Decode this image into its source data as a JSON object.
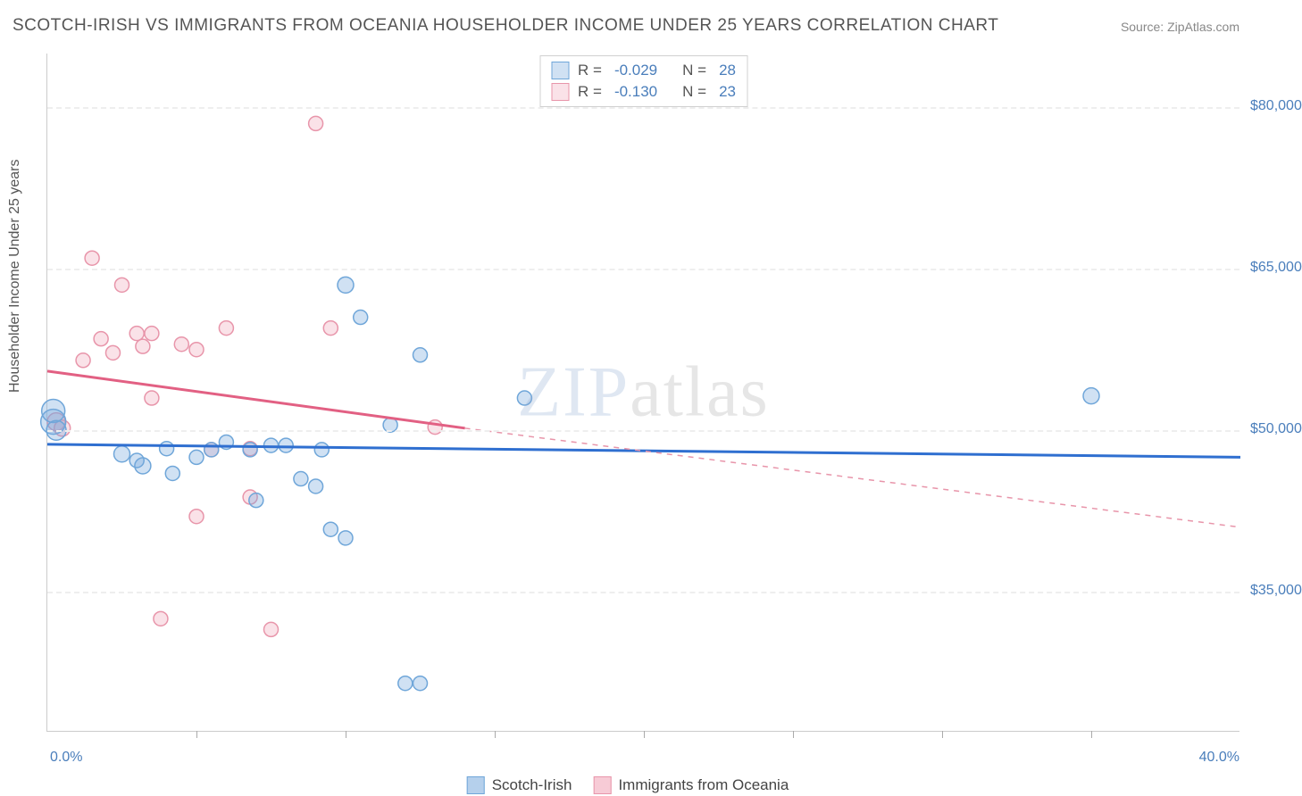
{
  "title": "SCOTCH-IRISH VS IMMIGRANTS FROM OCEANIA HOUSEHOLDER INCOME UNDER 25 YEARS CORRELATION CHART",
  "source": "Source: ZipAtlas.com",
  "ylabel": "Householder Income Under 25 years",
  "watermark_a": "ZIP",
  "watermark_b": "atlas",
  "chart": {
    "type": "scatter",
    "background_color": "#ffffff",
    "grid_color": "#eeeeee",
    "axis_color": "#cccccc",
    "tick_text_color": "#4a7ebb",
    "xlim": [
      0,
      40
    ],
    "ylim": [
      22000,
      85000
    ],
    "xticks_label": {
      "min": "0.0%",
      "max": "40.0%"
    },
    "xtick_positions_pct": [
      12.5,
      25,
      37.5,
      50,
      62.5,
      75,
      87.5
    ],
    "yticks": [
      {
        "value": 80000,
        "label": "$80,000"
      },
      {
        "value": 65000,
        "label": "$65,000"
      },
      {
        "value": 50000,
        "label": "$50,000"
      },
      {
        "value": 35000,
        "label": "$35,000"
      }
    ],
    "series": [
      {
        "name": "Scotch-Irish",
        "color_fill": "rgba(120,170,220,0.35)",
        "color_stroke": "#6fa6d9",
        "line_color": "#2f6fd0",
        "line_width": 3,
        "r_value": "-0.029",
        "n_value": "28",
        "trend": {
          "x1": 0,
          "y1": 48700,
          "x2": 40,
          "y2": 47500,
          "dash": false,
          "extend_x": 40
        },
        "points": [
          {
            "x": 0.2,
            "y": 50800,
            "r": 14
          },
          {
            "x": 0.2,
            "y": 51800,
            "r": 13
          },
          {
            "x": 0.3,
            "y": 50000,
            "r": 11
          },
          {
            "x": 2.5,
            "y": 47800,
            "r": 9
          },
          {
            "x": 3.2,
            "y": 46700,
            "r": 9
          },
          {
            "x": 3.0,
            "y": 47200,
            "r": 8
          },
          {
            "x": 4.2,
            "y": 46000,
            "r": 8
          },
          {
            "x": 4.0,
            "y": 48300,
            "r": 8
          },
          {
            "x": 5.0,
            "y": 47500,
            "r": 8
          },
          {
            "x": 5.5,
            "y": 48200,
            "r": 8
          },
          {
            "x": 6.0,
            "y": 48900,
            "r": 8
          },
          {
            "x": 6.8,
            "y": 48200,
            "r": 8
          },
          {
            "x": 7.0,
            "y": 43500,
            "r": 8
          },
          {
            "x": 7.5,
            "y": 48600,
            "r": 8
          },
          {
            "x": 8.0,
            "y": 48600,
            "r": 8
          },
          {
            "x": 8.5,
            "y": 45500,
            "r": 8
          },
          {
            "x": 9.0,
            "y": 44800,
            "r": 8
          },
          {
            "x": 9.2,
            "y": 48200,
            "r": 8
          },
          {
            "x": 9.5,
            "y": 40800,
            "r": 8
          },
          {
            "x": 10.0,
            "y": 40000,
            "r": 8
          },
          {
            "x": 10.0,
            "y": 63500,
            "r": 9
          },
          {
            "x": 10.5,
            "y": 60500,
            "r": 8
          },
          {
            "x": 11.5,
            "y": 50500,
            "r": 8
          },
          {
            "x": 12.5,
            "y": 57000,
            "r": 8
          },
          {
            "x": 12.0,
            "y": 26500,
            "r": 8
          },
          {
            "x": 12.5,
            "y": 26500,
            "r": 8
          },
          {
            "x": 16.0,
            "y": 53000,
            "r": 8
          },
          {
            "x": 35.0,
            "y": 53200,
            "r": 9
          }
        ]
      },
      {
        "name": "Immigrants from Oceania",
        "color_fill": "rgba(240,160,180,0.30)",
        "color_stroke": "#e895aa",
        "line_color": "#e26083",
        "line_width": 3,
        "r_value": "-0.130",
        "n_value": "23",
        "trend": {
          "x1": 0,
          "y1": 55500,
          "x2": 14,
          "y2": 50200,
          "dash_extend_to": 40,
          "dash_y_end": 41000
        },
        "points": [
          {
            "x": 0.3,
            "y": 50800,
            "r": 10
          },
          {
            "x": 0.5,
            "y": 50200,
            "r": 9
          },
          {
            "x": 1.2,
            "y": 56500,
            "r": 8
          },
          {
            "x": 1.5,
            "y": 66000,
            "r": 8
          },
          {
            "x": 1.8,
            "y": 58500,
            "r": 8
          },
          {
            "x": 2.2,
            "y": 57200,
            "r": 8
          },
          {
            "x": 2.5,
            "y": 63500,
            "r": 8
          },
          {
            "x": 3.0,
            "y": 59000,
            "r": 8
          },
          {
            "x": 3.2,
            "y": 57800,
            "r": 8
          },
          {
            "x": 3.5,
            "y": 59000,
            "r": 8
          },
          {
            "x": 3.5,
            "y": 53000,
            "r": 8
          },
          {
            "x": 3.8,
            "y": 32500,
            "r": 8
          },
          {
            "x": 4.5,
            "y": 58000,
            "r": 8
          },
          {
            "x": 5.0,
            "y": 57500,
            "r": 8
          },
          {
            "x": 5.0,
            "y": 42000,
            "r": 8
          },
          {
            "x": 5.5,
            "y": 48200,
            "r": 8
          },
          {
            "x": 6.0,
            "y": 59500,
            "r": 8
          },
          {
            "x": 6.8,
            "y": 43800,
            "r": 8
          },
          {
            "x": 6.8,
            "y": 48300,
            "r": 8
          },
          {
            "x": 7.5,
            "y": 31500,
            "r": 8
          },
          {
            "x": 9.0,
            "y": 78500,
            "r": 8
          },
          {
            "x": 9.5,
            "y": 59500,
            "r": 8
          },
          {
            "x": 13.0,
            "y": 50300,
            "r": 8
          }
        ]
      }
    ]
  },
  "legend_bottom": [
    {
      "label": "Scotch-Irish",
      "fill": "rgba(120,170,220,0.55)",
      "stroke": "#6fa6d9"
    },
    {
      "label": "Immigrants from Oceania",
      "fill": "rgba(240,160,180,0.55)",
      "stroke": "#e895aa"
    }
  ]
}
